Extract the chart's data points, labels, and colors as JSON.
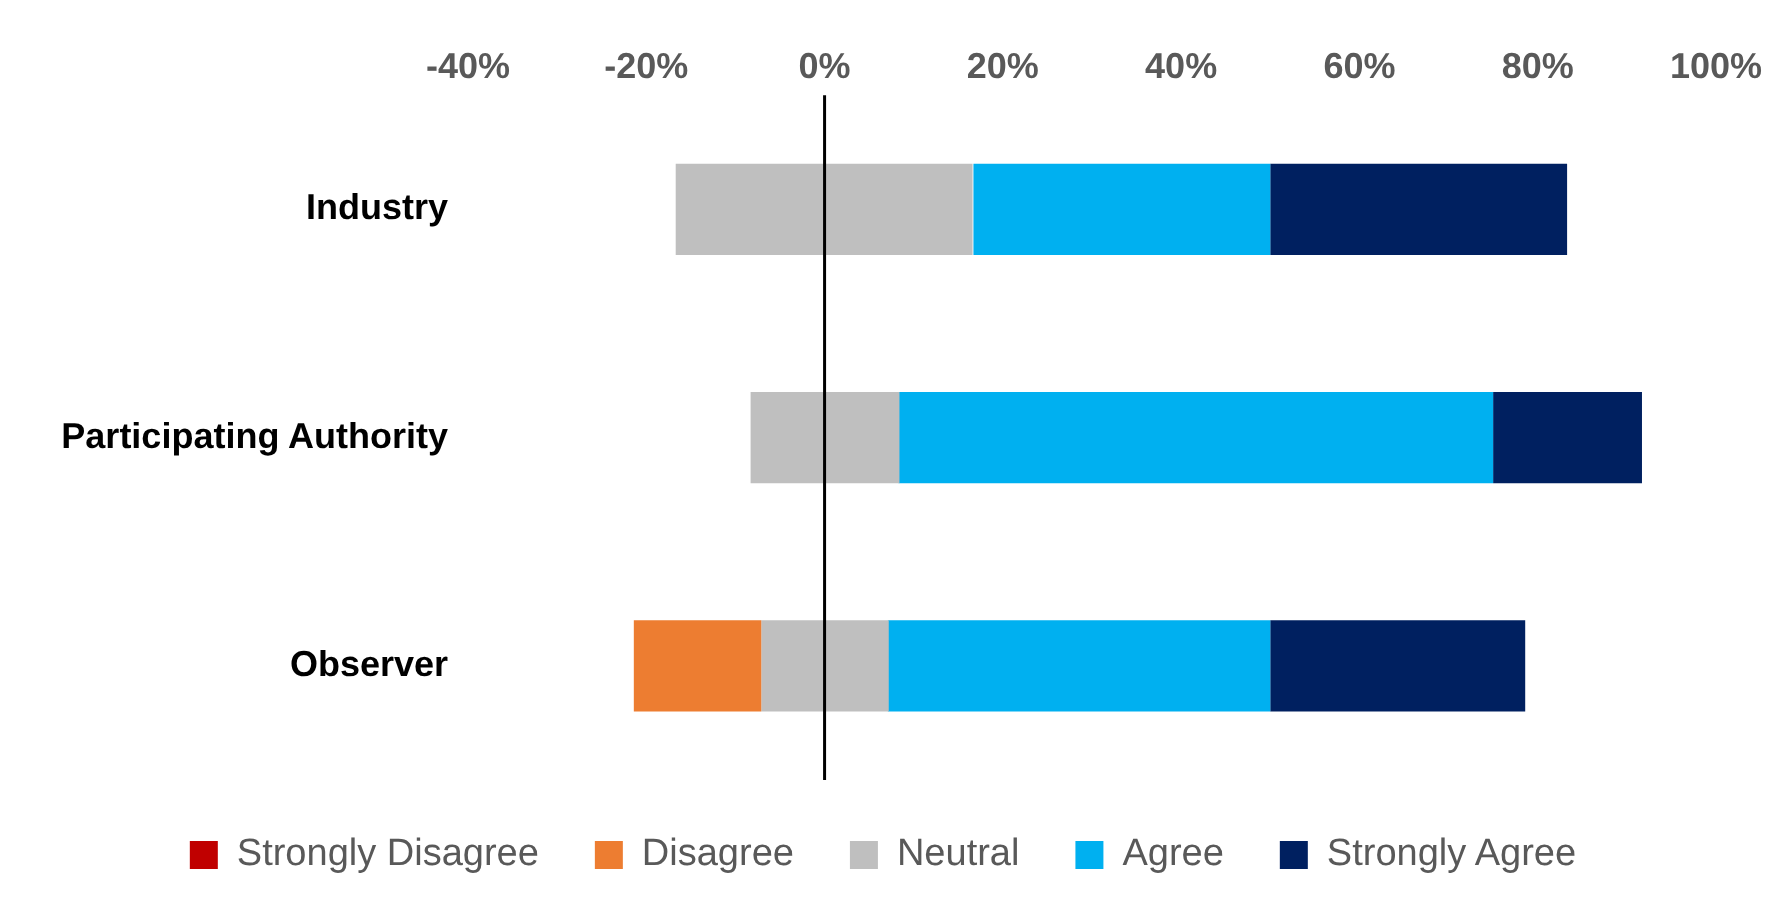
{
  "chart_data": {
    "type": "bar",
    "orientation": "horizontal",
    "categories": [
      "Industry",
      "Participating Authority",
      "Observer"
    ],
    "series": [
      {
        "name": "Strongly Disagree",
        "color": "#c00000",
        "values": [
          null,
          null,
          null
        ],
        "base": [
          null,
          null,
          null
        ]
      },
      {
        "name": "Disagree",
        "color": "#ed7d31",
        "values": [
          null,
          null,
          14.3
        ],
        "base": [
          null,
          null,
          -21.4
        ]
      },
      {
        "name": "Neutral",
        "color": "#bfbfbf",
        "values": [
          33.3,
          16.7,
          14.3
        ],
        "base": [
          -16.7,
          -8.3,
          -7.1
        ]
      },
      {
        "name": "Agree",
        "color": "#00b0f0",
        "values": [
          33.3,
          66.7,
          42.9
        ],
        "base": [
          16.7,
          8.3,
          7.1
        ]
      },
      {
        "name": "Strongly Agree",
        "color": "#002060",
        "values": [
          33.3,
          16.7,
          28.6
        ],
        "base": [
          50,
          75,
          50
        ]
      }
    ],
    "xlim": [
      -40,
      100
    ],
    "xticks": [
      {
        "value": -40,
        "label": "-40%"
      },
      {
        "value": -20,
        "label": "-20%"
      },
      {
        "value": 0,
        "label": "0%"
      },
      {
        "value": 20,
        "label": "20%"
      },
      {
        "value": 40,
        "label": "40%"
      },
      {
        "value": 60,
        "label": "60%"
      },
      {
        "value": 80,
        "label": "80%"
      },
      {
        "value": 100,
        "label": "100%"
      }
    ],
    "ref_lines": [
      {
        "axis": "x",
        "value": 0,
        "color": "#000000"
      }
    ],
    "grid": false,
    "legend": "bottom"
  }
}
